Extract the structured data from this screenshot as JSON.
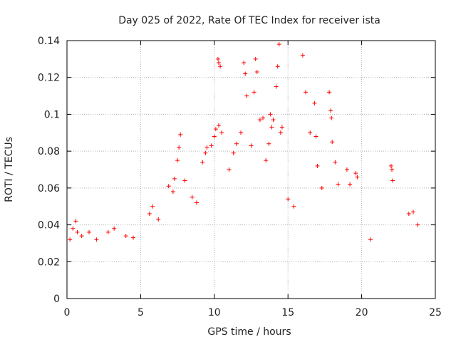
{
  "chart_data": {
    "type": "scatter",
    "title": "Day 025 of 2022, Rate Of TEC Index for receiver ista",
    "xlabel": "GPS time / hours",
    "ylabel": "ROTI / TECUs",
    "xlim": [
      0,
      25
    ],
    "ylim": [
      0,
      0.14
    ],
    "xticks": [
      0,
      5,
      10,
      15,
      20,
      25
    ],
    "yticks": [
      0,
      0.02,
      0.04,
      0.06,
      0.08,
      0.1,
      0.12,
      0.14
    ],
    "xtick_labels": [
      "0",
      "5",
      "10",
      "15",
      "20",
      "25"
    ],
    "ytick_labels": [
      "0",
      "0.02",
      "0.04",
      "0.06",
      "0.08",
      "0.1",
      "0.12",
      "0.14"
    ],
    "grid": true,
    "marker": "+",
    "marker_color": "#ff0000",
    "data_gaps_hours": [
      [
        20.7,
        21.7
      ]
    ],
    "series": [
      {
        "values": [
          [
            0.2,
            0.032
          ],
          [
            0.4,
            0.038
          ],
          [
            0.6,
            0.042
          ],
          [
            0.7,
            0.036
          ],
          [
            1.0,
            0.034
          ],
          [
            1.5,
            0.036
          ],
          [
            2.0,
            0.032
          ],
          [
            2.8,
            0.036
          ],
          [
            3.2,
            0.038
          ],
          [
            4.0,
            0.034
          ],
          [
            4.5,
            0.033
          ],
          [
            5.6,
            0.046
          ],
          [
            5.8,
            0.05
          ],
          [
            6.2,
            0.043
          ],
          [
            6.9,
            0.061
          ],
          [
            7.2,
            0.058
          ],
          [
            7.3,
            0.065
          ],
          [
            7.5,
            0.075
          ],
          [
            7.6,
            0.082
          ],
          [
            7.7,
            0.089
          ],
          [
            8.0,
            0.064
          ],
          [
            8.5,
            0.055
          ],
          [
            8.8,
            0.052
          ],
          [
            9.2,
            0.074
          ],
          [
            9.4,
            0.079
          ],
          [
            9.5,
            0.082
          ],
          [
            9.8,
            0.083
          ],
          [
            10.0,
            0.088
          ],
          [
            10.1,
            0.092
          ],
          [
            10.3,
            0.094
          ],
          [
            10.25,
            0.13
          ],
          [
            10.3,
            0.128
          ],
          [
            10.4,
            0.126
          ],
          [
            10.5,
            0.09
          ],
          [
            11.0,
            0.07
          ],
          [
            11.3,
            0.079
          ],
          [
            11.5,
            0.084
          ],
          [
            11.8,
            0.09
          ],
          [
            12.0,
            0.128
          ],
          [
            12.1,
            0.122
          ],
          [
            12.2,
            0.11
          ],
          [
            12.5,
            0.083
          ],
          [
            12.7,
            0.112
          ],
          [
            12.8,
            0.13
          ],
          [
            12.9,
            0.123
          ],
          [
            13.1,
            0.097
          ],
          [
            13.3,
            0.098
          ],
          [
            13.5,
            0.075
          ],
          [
            13.7,
            0.084
          ],
          [
            13.8,
            0.1
          ],
          [
            13.9,
            0.093
          ],
          [
            14.0,
            0.097
          ],
          [
            14.2,
            0.115
          ],
          [
            14.3,
            0.126
          ],
          [
            14.4,
            0.138
          ],
          [
            14.5,
            0.09
          ],
          [
            14.6,
            0.093
          ],
          [
            15.0,
            0.054
          ],
          [
            15.4,
            0.05
          ],
          [
            16.0,
            0.132
          ],
          [
            16.2,
            0.112
          ],
          [
            16.5,
            0.09
          ],
          [
            16.8,
            0.106
          ],
          [
            16.9,
            0.088
          ],
          [
            17.0,
            0.072
          ],
          [
            17.3,
            0.06
          ],
          [
            17.8,
            0.112
          ],
          [
            17.9,
            0.102
          ],
          [
            17.95,
            0.098
          ],
          [
            18.0,
            0.085
          ],
          [
            18.2,
            0.074
          ],
          [
            18.4,
            0.062
          ],
          [
            19.0,
            0.07
          ],
          [
            19.2,
            0.062
          ],
          [
            19.6,
            0.068
          ],
          [
            19.7,
            0.066
          ],
          [
            20.6,
            0.032
          ],
          [
            22.0,
            0.072
          ],
          [
            22.05,
            0.07
          ],
          [
            22.1,
            0.064
          ],
          [
            23.2,
            0.046
          ],
          [
            23.5,
            0.047
          ],
          [
            23.8,
            0.04
          ]
        ]
      }
    ]
  }
}
